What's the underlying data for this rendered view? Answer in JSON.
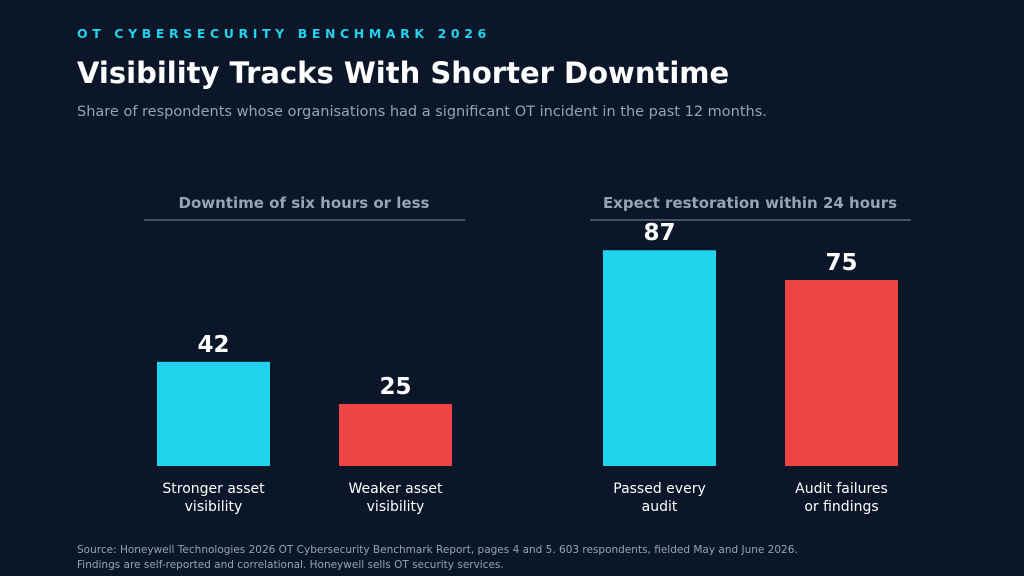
{
  "header": {
    "eyebrow": "OT CYBERSECURITY BENCHMARK 2026",
    "title": "Visibility Tracks With Shorter Downtime",
    "subtitle": "Share of respondents whose organisations had a significant OT incident in the past 12 months."
  },
  "footer": {
    "source_line1": "Source: Honeywell Technologies 2026 OT Cybersecurity Benchmark Report, pages 4 and 5. 603 respondents, fielded May and June 2026.",
    "source_line2": "Findings are self-reported and correlational. Honeywell sells OT security services."
  },
  "colors": {
    "background": "#0b1628",
    "accent_cyan": "#22d3ee",
    "accent_red": "#ef4444",
    "muted_text": "#97a3b6",
    "divider": "#5b6778"
  },
  "chart_data": [
    {
      "type": "bar",
      "title": "Downtime of six hours or less",
      "categories": [
        [
          "Stronger asset",
          "visibility"
        ],
        [
          "Weaker asset",
          "visibility"
        ]
      ],
      "values": [
        42,
        25
      ],
      "colors": [
        "#22d3ee",
        "#ef4444"
      ],
      "ylim": [
        0,
        100
      ],
      "grid": false
    },
    {
      "type": "bar",
      "title": "Expect restoration within 24 hours",
      "categories": [
        [
          "Passed every",
          "audit"
        ],
        [
          "Audit failures",
          "or findings"
        ]
      ],
      "values": [
        87,
        75
      ],
      "colors": [
        "#22d3ee",
        "#ef4444"
      ],
      "ylim": [
        0,
        100
      ],
      "grid": false
    }
  ]
}
